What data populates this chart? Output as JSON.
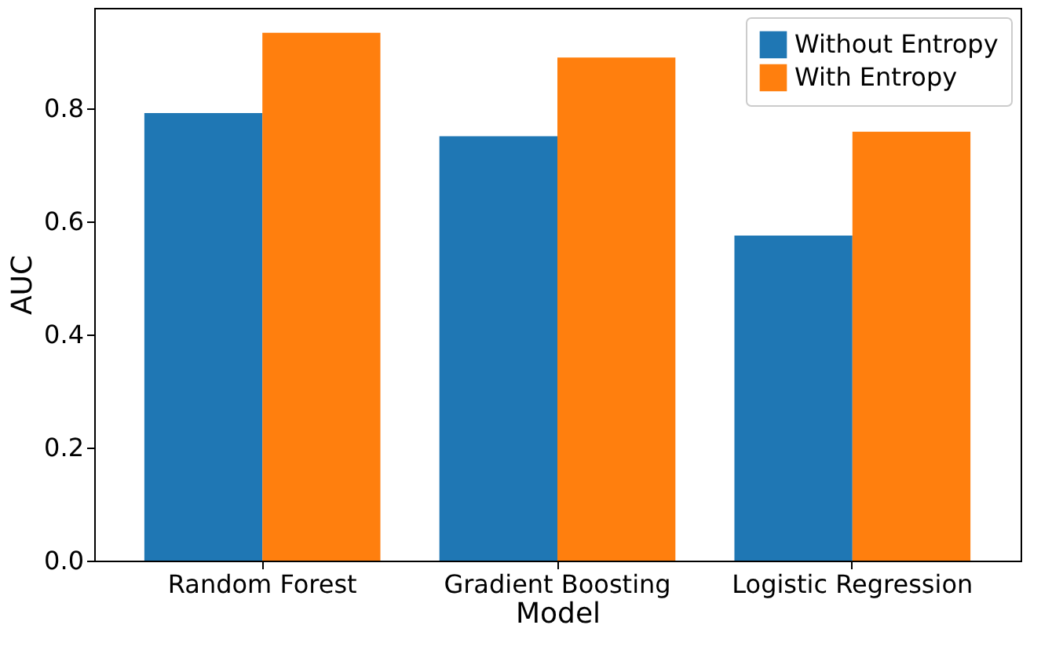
{
  "chart_data": {
    "type": "bar",
    "xlabel": "Model",
    "ylabel": "AUC",
    "categories": [
      "Random Forest",
      "Gradient Boosting",
      "Logistic Regression"
    ],
    "series": [
      {
        "name": "Without Entropy",
        "color": "#1f77b4",
        "values": [
          0.792,
          0.751,
          0.575
        ]
      },
      {
        "name": "With Entropy",
        "color": "#ff7f0e",
        "values": [
          0.934,
          0.89,
          0.759
        ]
      }
    ],
    "ylim": [
      0,
      0.978
    ],
    "yticks": [
      {
        "value": 0,
        "label": "0.0"
      },
      0.2,
      0.4,
      0.6,
      0.8
    ],
    "grid": false,
    "legend": "top right"
  }
}
